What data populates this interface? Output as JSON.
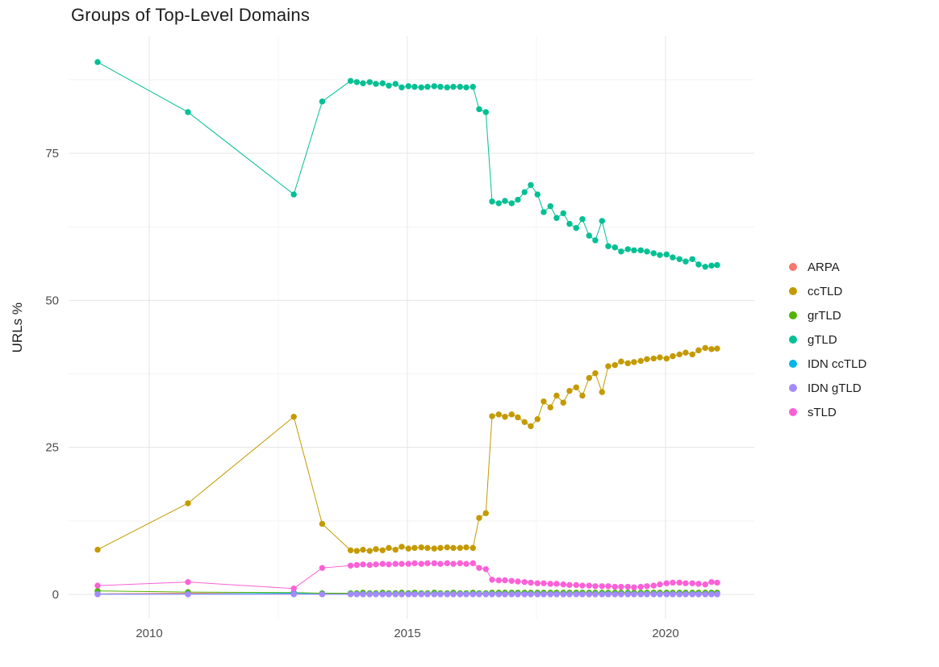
{
  "chart_data": {
    "type": "scatter",
    "title": "Groups of Top-Level Domains",
    "xlabel": "",
    "ylabel": "URLs %",
    "grid": true,
    "legend_position": "right",
    "axes": {
      "x_ticks": [
        2010,
        2015,
        2020
      ],
      "x_minor": [
        2012.5,
        2017.5
      ],
      "y_ticks": [
        0,
        25,
        50,
        75
      ],
      "y_minor": [
        12.5,
        37.5,
        62.5,
        87.5
      ],
      "x_domain": [
        2008.4,
        2021.7
      ],
      "y_domain": [
        -3,
        95
      ]
    },
    "x": [
      2009.0,
      2010.75,
      2012.8,
      2013.35,
      2013.9,
      2014.02,
      2014.14,
      2014.27,
      2014.39,
      2014.52,
      2014.64,
      2014.77,
      2014.89,
      2015.02,
      2015.14,
      2015.27,
      2015.39,
      2015.52,
      2015.64,
      2015.77,
      2015.89,
      2016.02,
      2016.14,
      2016.27,
      2016.39,
      2016.52,
      2016.64,
      2016.77,
      2016.89,
      2017.02,
      2017.14,
      2017.27,
      2017.39,
      2017.52,
      2017.64,
      2017.77,
      2017.89,
      2018.02,
      2018.14,
      2018.27,
      2018.39,
      2018.52,
      2018.64,
      2018.77,
      2018.89,
      2019.02,
      2019.14,
      2019.27,
      2019.39,
      2019.52,
      2019.64,
      2019.77,
      2019.89,
      2020.02,
      2020.14,
      2020.27,
      2020.39,
      2020.52,
      2020.64,
      2020.77,
      2020.89,
      2021.0
    ],
    "series": [
      {
        "name": "ARPA",
        "color": "#F8766D",
        "values": [
          0.1,
          0.2,
          0.1,
          0.1,
          0.1,
          0.1,
          0.1,
          0.1,
          0.1,
          0.1,
          0.1,
          0.1,
          0.1,
          0.1,
          0.1,
          0.1,
          0.1,
          0.1,
          0.1,
          0.1,
          0.1,
          0.1,
          0.1,
          0.1,
          0.1,
          0.1,
          0.1,
          0.1,
          0.1,
          0.1,
          0.1,
          0.1,
          0.1,
          0.1,
          0.1,
          0.1,
          0.1,
          0.1,
          0.1,
          0.1,
          0.1,
          0.1,
          0.1,
          0.1,
          0.1,
          0.1,
          0.1,
          0.1,
          0.1,
          0.1,
          0.1,
          0.1,
          0.1,
          0.1,
          0.1,
          0.1,
          0.1,
          0.1,
          0.1,
          0.1,
          0.1,
          0.1
        ]
      },
      {
        "name": "ccTLD",
        "color": "#C49A00",
        "values": [
          7.6,
          15.5,
          30.2,
          12.0,
          7.5,
          7.4,
          7.6,
          7.4,
          7.7,
          7.5,
          7.9,
          7.6,
          8.1,
          7.8,
          7.9,
          8.0,
          7.9,
          7.8,
          7.9,
          8.0,
          7.9,
          7.9,
          8.0,
          7.9,
          13.0,
          13.8,
          30.3,
          30.6,
          30.2,
          30.6,
          30.1,
          29.3,
          28.6,
          29.8,
          32.8,
          31.8,
          33.8,
          32.6,
          34.6,
          35.2,
          33.8,
          36.8,
          37.6,
          34.4,
          38.8,
          39.0,
          39.6,
          39.3,
          39.5,
          39.7,
          40.0,
          40.1,
          40.3,
          40.1,
          40.5,
          40.8,
          41.1,
          40.8,
          41.5,
          41.9,
          41.7,
          41.8
        ]
      },
      {
        "name": "grTLD",
        "color": "#53B400",
        "values": [
          0.6,
          0.4,
          0.3,
          0.2,
          0.2,
          0.2,
          0.3,
          0.2,
          0.2,
          0.3,
          0.2,
          0.2,
          0.3,
          0.2,
          0.3,
          0.2,
          0.2,
          0.3,
          0.2,
          0.2,
          0.3,
          0.2,
          0.2,
          0.3,
          0.2,
          0.2,
          0.3,
          0.3,
          0.3,
          0.3,
          0.3,
          0.3,
          0.3,
          0.3,
          0.3,
          0.3,
          0.3,
          0.3,
          0.3,
          0.3,
          0.3,
          0.3,
          0.3,
          0.3,
          0.3,
          0.3,
          0.3,
          0.3,
          0.3,
          0.3,
          0.3,
          0.3,
          0.3,
          0.3,
          0.3,
          0.3,
          0.3,
          0.3,
          0.3,
          0.3,
          0.3,
          0.3
        ]
      },
      {
        "name": "gTLD",
        "color": "#00C094",
        "values": [
          90.5,
          82.0,
          68.0,
          83.8,
          87.3,
          87.1,
          86.9,
          87.1,
          86.8,
          86.9,
          86.5,
          86.8,
          86.2,
          86.4,
          86.3,
          86.2,
          86.3,
          86.4,
          86.3,
          86.2,
          86.3,
          86.3,
          86.2,
          86.3,
          82.5,
          82.0,
          66.8,
          66.5,
          66.9,
          66.5,
          67.1,
          68.4,
          69.6,
          68.0,
          65.0,
          66.0,
          64.0,
          64.8,
          63.0,
          62.3,
          63.8,
          61.0,
          60.2,
          63.5,
          59.2,
          59.0,
          58.3,
          58.7,
          58.5,
          58.5,
          58.3,
          58.0,
          57.7,
          57.8,
          57.3,
          57.0,
          56.6,
          57.0,
          56.1,
          55.7,
          55.9,
          56.0
        ]
      },
      {
        "name": "IDN ccTLD",
        "color": "#00B6EB",
        "values": [
          0.05,
          0.05,
          0.2,
          0.05,
          0.05,
          0.05,
          0.05,
          0.05,
          0.05,
          0.05,
          0.05,
          0.05,
          0.05,
          0.05,
          0.05,
          0.05,
          0.05,
          0.05,
          0.05,
          0.05,
          0.05,
          0.05,
          0.05,
          0.05,
          0.05,
          0.05,
          0.05,
          0.05,
          0.05,
          0.05,
          0.05,
          0.05,
          0.05,
          0.05,
          0.05,
          0.05,
          0.05,
          0.05,
          0.05,
          0.05,
          0.05,
          0.05,
          0.05,
          0.05,
          0.05,
          0.05,
          0.05,
          0.05,
          0.05,
          0.05,
          0.05,
          0.05,
          0.05,
          0.05,
          0.05,
          0.05,
          0.05,
          0.05,
          0.05,
          0.05,
          0.05,
          0.05
        ]
      },
      {
        "name": "IDN gTLD",
        "color": "#A58AFF",
        "values": [
          0.02,
          0.02,
          0.02,
          0.02,
          0.02,
          0.02,
          0.02,
          0.02,
          0.02,
          0.02,
          0.02,
          0.02,
          0.02,
          0.02,
          0.02,
          0.02,
          0.02,
          0.02,
          0.02,
          0.02,
          0.02,
          0.02,
          0.02,
          0.02,
          0.02,
          0.02,
          0.02,
          0.02,
          0.02,
          0.02,
          0.02,
          0.02,
          0.02,
          0.02,
          0.02,
          0.02,
          0.02,
          0.02,
          0.02,
          0.02,
          0.02,
          0.02,
          0.02,
          0.02,
          0.02,
          0.02,
          0.02,
          0.02,
          0.02,
          0.02,
          0.02,
          0.02,
          0.02,
          0.02,
          0.02,
          0.02,
          0.02,
          0.02,
          0.02,
          0.02,
          0.02,
          0.02
        ]
      },
      {
        "name": "sTLD",
        "color": "#FB61D7",
        "values": [
          1.5,
          2.1,
          1.0,
          4.5,
          4.9,
          5.0,
          5.1,
          5.0,
          5.1,
          5.2,
          5.1,
          5.2,
          5.2,
          5.2,
          5.3,
          5.2,
          5.3,
          5.3,
          5.2,
          5.3,
          5.2,
          5.3,
          5.2,
          5.3,
          4.5,
          4.3,
          2.5,
          2.4,
          2.4,
          2.3,
          2.2,
          2.1,
          2.0,
          1.9,
          1.9,
          1.8,
          1.8,
          1.7,
          1.6,
          1.6,
          1.5,
          1.5,
          1.4,
          1.4,
          1.4,
          1.3,
          1.3,
          1.3,
          1.2,
          1.3,
          1.4,
          1.5,
          1.7,
          1.9,
          2.0,
          2.0,
          1.9,
          1.9,
          1.8,
          1.7,
          2.1,
          2.0
        ]
      }
    ]
  }
}
